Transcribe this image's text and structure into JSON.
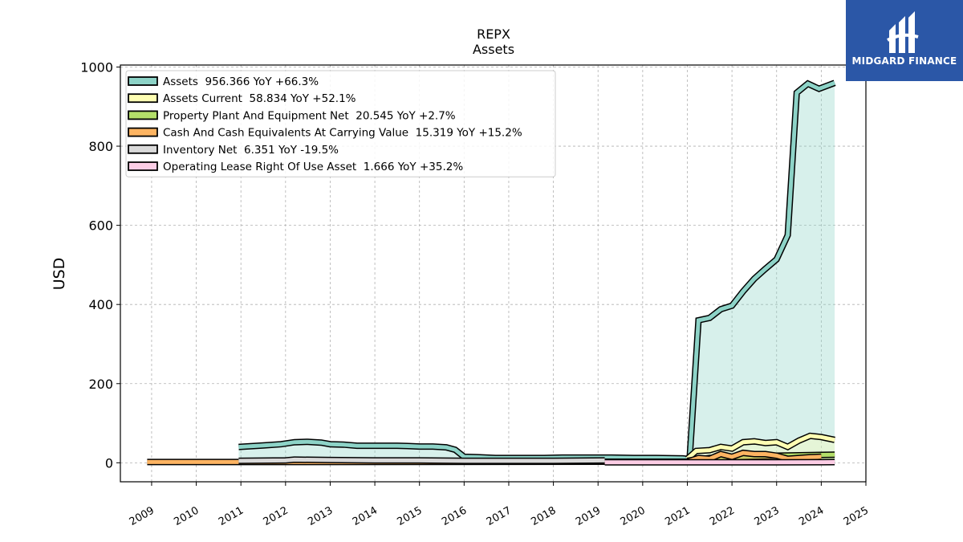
{
  "brand": {
    "name": "MIDGARD FINANCE",
    "color": "#2b57a7"
  },
  "chart_data": {
    "type": "area",
    "title": "REPX",
    "subtitle": "Assets",
    "ylabel": "USD",
    "xlabel": "",
    "xlim": [
      2008.3,
      2025.0
    ],
    "ylim": [
      -48,
      1005
    ],
    "yticks": [
      0,
      200,
      400,
      600,
      800,
      1000
    ],
    "xticks": [
      2009,
      2010,
      2011,
      2012,
      2013,
      2014,
      2015,
      2016,
      2017,
      2018,
      2019,
      2020,
      2021,
      2022,
      2023,
      2024,
      2025
    ],
    "grid": true,
    "legend_position": "top-left",
    "series": [
      {
        "name": "Assets",
        "legend": "Assets  956.366 YoY +66.3%",
        "color": "#8dd3c7",
        "points": [
          [
            2010.95,
            40
          ],
          [
            2011.5,
            44
          ],
          [
            2011.9,
            47
          ],
          [
            2012.2,
            52
          ],
          [
            2012.5,
            53
          ],
          [
            2012.8,
            51
          ],
          [
            2013.0,
            47
          ],
          [
            2013.3,
            46
          ],
          [
            2013.6,
            43
          ],
          [
            2013.9,
            43
          ],
          [
            2014.2,
            43
          ],
          [
            2014.5,
            43
          ],
          [
            2014.8,
            42
          ],
          [
            2015.0,
            41
          ],
          [
            2015.3,
            41
          ],
          [
            2015.6,
            39
          ],
          [
            2015.8,
            33
          ],
          [
            2016.0,
            15
          ],
          [
            2016.3,
            14
          ],
          [
            2016.7,
            12
          ],
          [
            2017.2,
            12
          ],
          [
            2017.8,
            12
          ],
          [
            2018.2,
            13
          ],
          [
            2018.8,
            13
          ],
          [
            2019.3,
            13
          ],
          [
            2019.8,
            12
          ],
          [
            2020.3,
            12
          ],
          [
            2020.9,
            11
          ],
          [
            2021.05,
            9
          ],
          [
            2021.25,
            360
          ],
          [
            2021.5,
            366
          ],
          [
            2021.75,
            388
          ],
          [
            2022.0,
            397
          ],
          [
            2022.25,
            433
          ],
          [
            2022.5,
            465
          ],
          [
            2022.75,
            490
          ],
          [
            2023.0,
            514
          ],
          [
            2023.25,
            575
          ],
          [
            2023.45,
            935
          ],
          [
            2023.7,
            958
          ],
          [
            2023.95,
            945
          ],
          [
            2024.3,
            960
          ]
        ]
      },
      {
        "name": "Assets Current",
        "legend": "Assets Current  58.834 YoY +52.1%",
        "color": "#ffffb3",
        "points": [
          [
            2021.0,
            10
          ],
          [
            2021.2,
            30
          ],
          [
            2021.5,
            32
          ],
          [
            2021.75,
            40
          ],
          [
            2022.0,
            36
          ],
          [
            2022.25,
            52
          ],
          [
            2022.5,
            54
          ],
          [
            2022.75,
            50
          ],
          [
            2023.0,
            52
          ],
          [
            2023.25,
            40
          ],
          [
            2023.5,
            56
          ],
          [
            2023.75,
            68
          ],
          [
            2024.0,
            65
          ],
          [
            2024.3,
            58
          ]
        ]
      },
      {
        "name": "Property Plant And Equipment Net",
        "legend": "Property Plant And Equipment Net  20.545 YoY +2.7%",
        "color": "#b3de69",
        "points": [
          [
            2021.0,
            5
          ],
          [
            2021.5,
            12
          ],
          [
            2022.0,
            14
          ],
          [
            2022.5,
            16
          ],
          [
            2023.0,
            18
          ],
          [
            2023.5,
            19
          ],
          [
            2024.0,
            20
          ],
          [
            2024.3,
            20.5
          ]
        ]
      },
      {
        "name": "Cash And Cash Equivalents At Carrying Value",
        "legend": "Cash And Cash Equivalents At Carrying Value  15.319 YoY +15.2%",
        "color": "#fdb462",
        "points": [
          [
            2008.9,
            2
          ],
          [
            2010.95,
            2
          ],
          [
            2021.0,
            3
          ],
          [
            2021.25,
            12
          ],
          [
            2021.5,
            10
          ],
          [
            2021.75,
            22
          ],
          [
            2022.0,
            15
          ],
          [
            2022.25,
            25
          ],
          [
            2022.5,
            22
          ],
          [
            2022.75,
            22
          ],
          [
            2023.0,
            18
          ],
          [
            2023.25,
            10
          ],
          [
            2023.5,
            12
          ],
          [
            2023.75,
            14
          ],
          [
            2024.0,
            15.3
          ]
        ]
      },
      {
        "name": "Inventory Net",
        "legend": "Inventory Net  6.351 YoY -19.5%",
        "color": "#d9d9d9",
        "points": [
          [
            2010.95,
            5
          ],
          [
            2012.0,
            6
          ],
          [
            2012.2,
            8
          ],
          [
            2013.0,
            7
          ],
          [
            2014.0,
            6
          ],
          [
            2015.0,
            6
          ],
          [
            2016.0,
            5
          ],
          [
            2017.0,
            5
          ],
          [
            2018.0,
            5
          ],
          [
            2019.15,
            6
          ]
        ]
      },
      {
        "name": "Operating Lease Right Of Use Asset",
        "legend": "Operating Lease Right Of Use Asset  1.666 YoY +35.2%",
        "color": "#fccde5",
        "points": [
          [
            2019.15,
            1
          ],
          [
            2021.0,
            1.2
          ],
          [
            2022.0,
            1.3
          ],
          [
            2023.0,
            1.4
          ],
          [
            2024.0,
            1.5
          ],
          [
            2024.3,
            1.67
          ]
        ]
      }
    ]
  }
}
